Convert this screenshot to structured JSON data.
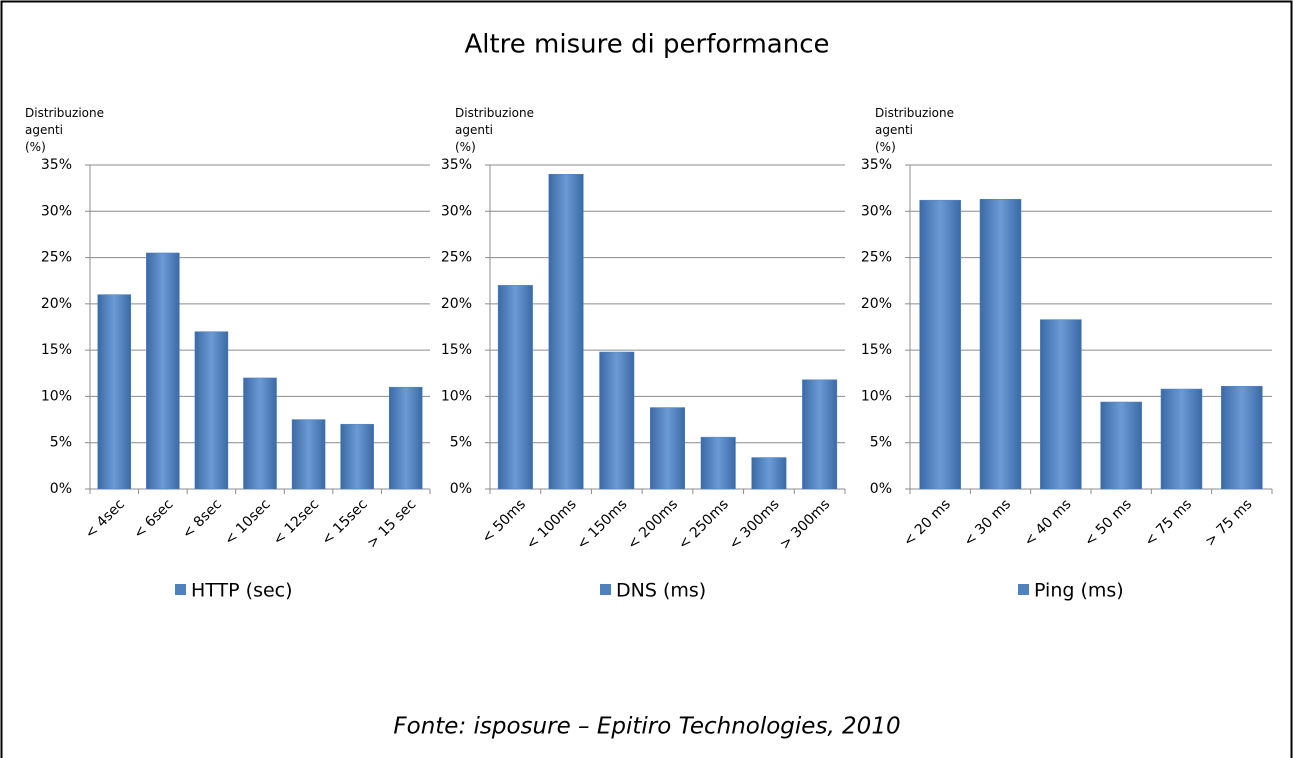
{
  "title": "Altre misure di performance",
  "source": "Fonte: isposure – Epitiro Technologies, 2010",
  "chart_data": [
    {
      "type": "bar",
      "y_label": "Distribuzione agenti (%)",
      "categories": [
        "< 4sec",
        "< 6sec",
        "< 8sec",
        "< 10sec",
        "< 12sec",
        "< 15sec",
        "> 15 sec"
      ],
      "series": [
        {
          "name": "HTTP (sec)",
          "color": "#4f81bd",
          "values": [
            21,
            25.5,
            17,
            12,
            7.5,
            7,
            11
          ]
        }
      ],
      "ylim": [
        0,
        35
      ],
      "yticks": [
        {
          "value": 0,
          "label": "0%"
        },
        {
          "value": 5,
          "label": "5%"
        },
        {
          "value": 10,
          "label": "10%"
        },
        {
          "value": 15,
          "label": "15%"
        },
        {
          "value": 20,
          "label": "20%"
        },
        {
          "value": 25,
          "label": "25%"
        },
        {
          "value": 30,
          "label": "30%"
        },
        {
          "value": 35,
          "label": "35%"
        }
      ],
      "grid": true
    },
    {
      "type": "bar",
      "y_label": "Distribuzione agenti (%)",
      "categories": [
        "< 50ms",
        "< 100ms",
        "< 150ms",
        "< 200ms",
        "< 250ms",
        "< 300ms",
        "> 300ms"
      ],
      "series": [
        {
          "name": "DNS (ms)",
          "color": "#4f81bd",
          "values": [
            22,
            34,
            14.8,
            8.8,
            5.6,
            3.4,
            11.8
          ]
        }
      ],
      "ylim": [
        0,
        35
      ],
      "yticks": [
        {
          "value": 0,
          "label": "0%"
        },
        {
          "value": 5,
          "label": "5%"
        },
        {
          "value": 10,
          "label": "10%"
        },
        {
          "value": 15,
          "label": "15%"
        },
        {
          "value": 20,
          "label": "20%"
        },
        {
          "value": 25,
          "label": "25%"
        },
        {
          "value": 30,
          "label": "30%"
        },
        {
          "value": 35,
          "label": "35%"
        }
      ],
      "grid": true
    },
    {
      "type": "bar",
      "y_label": "Distribuzione agenti (%)",
      "categories": [
        "< 20 ms",
        "< 30 ms",
        "< 40 ms",
        "< 50 ms",
        "< 75 ms",
        "> 75 ms"
      ],
      "series": [
        {
          "name": "Ping (ms)",
          "color": "#4f81bd",
          "values": [
            31.2,
            31.3,
            18.3,
            9.4,
            10.8,
            11.1
          ]
        }
      ],
      "ylim": [
        0,
        35
      ],
      "yticks": [
        {
          "value": 0,
          "label": "0%"
        },
        {
          "value": 5,
          "label": "5%"
        },
        {
          "value": 10,
          "label": "10%"
        },
        {
          "value": 15,
          "label": "15%"
        },
        {
          "value": 20,
          "label": "20%"
        },
        {
          "value": 25,
          "label": "25%"
        },
        {
          "value": 30,
          "label": "30%"
        },
        {
          "value": 35,
          "label": "35%"
        }
      ],
      "grid": true
    }
  ]
}
